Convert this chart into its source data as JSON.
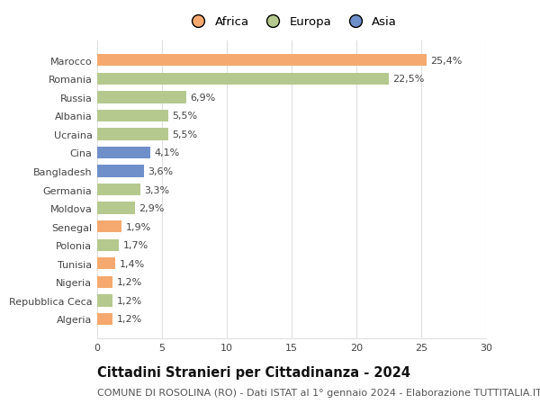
{
  "categories": [
    "Algeria",
    "Repubblica Ceca",
    "Nigeria",
    "Tunisia",
    "Polonia",
    "Senegal",
    "Moldova",
    "Germania",
    "Bangladesh",
    "Cina",
    "Ucraina",
    "Albania",
    "Russia",
    "Romania",
    "Marocco"
  ],
  "values": [
    1.2,
    1.2,
    1.2,
    1.4,
    1.7,
    1.9,
    2.9,
    3.3,
    3.6,
    4.1,
    5.5,
    5.5,
    6.9,
    22.5,
    25.4
  ],
  "labels": [
    "1,2%",
    "1,2%",
    "1,2%",
    "1,4%",
    "1,7%",
    "1,9%",
    "2,9%",
    "3,3%",
    "3,6%",
    "4,1%",
    "5,5%",
    "5,5%",
    "6,9%",
    "22,5%",
    "25,4%"
  ],
  "colors": [
    "#f5a96e",
    "#b5c98e",
    "#f5a96e",
    "#f5a96e",
    "#b5c98e",
    "#f5a96e",
    "#b5c98e",
    "#b5c98e",
    "#6e8fc9",
    "#6e8fc9",
    "#b5c98e",
    "#b5c98e",
    "#b5c98e",
    "#b5c98e",
    "#f5a96e"
  ],
  "legend_labels": [
    "Africa",
    "Europa",
    "Asia"
  ],
  "legend_colors": [
    "#f5a96e",
    "#b5c98e",
    "#6e8fc9"
  ],
  "title": "Cittadini Stranieri per Cittadinanza - 2024",
  "subtitle": "COMUNE DI ROSOLINA (RO) - Dati ISTAT al 1° gennaio 2024 - Elaborazione TUTTITALIA.IT",
  "xlim": [
    0,
    30
  ],
  "xticks": [
    0,
    5,
    10,
    15,
    20,
    25,
    30
  ],
  "background_color": "#ffffff",
  "grid_color": "#e0e0e0",
  "bar_height": 0.65,
  "title_fontsize": 10.5,
  "subtitle_fontsize": 8,
  "label_fontsize": 8,
  "tick_fontsize": 8,
  "legend_fontsize": 9.5
}
